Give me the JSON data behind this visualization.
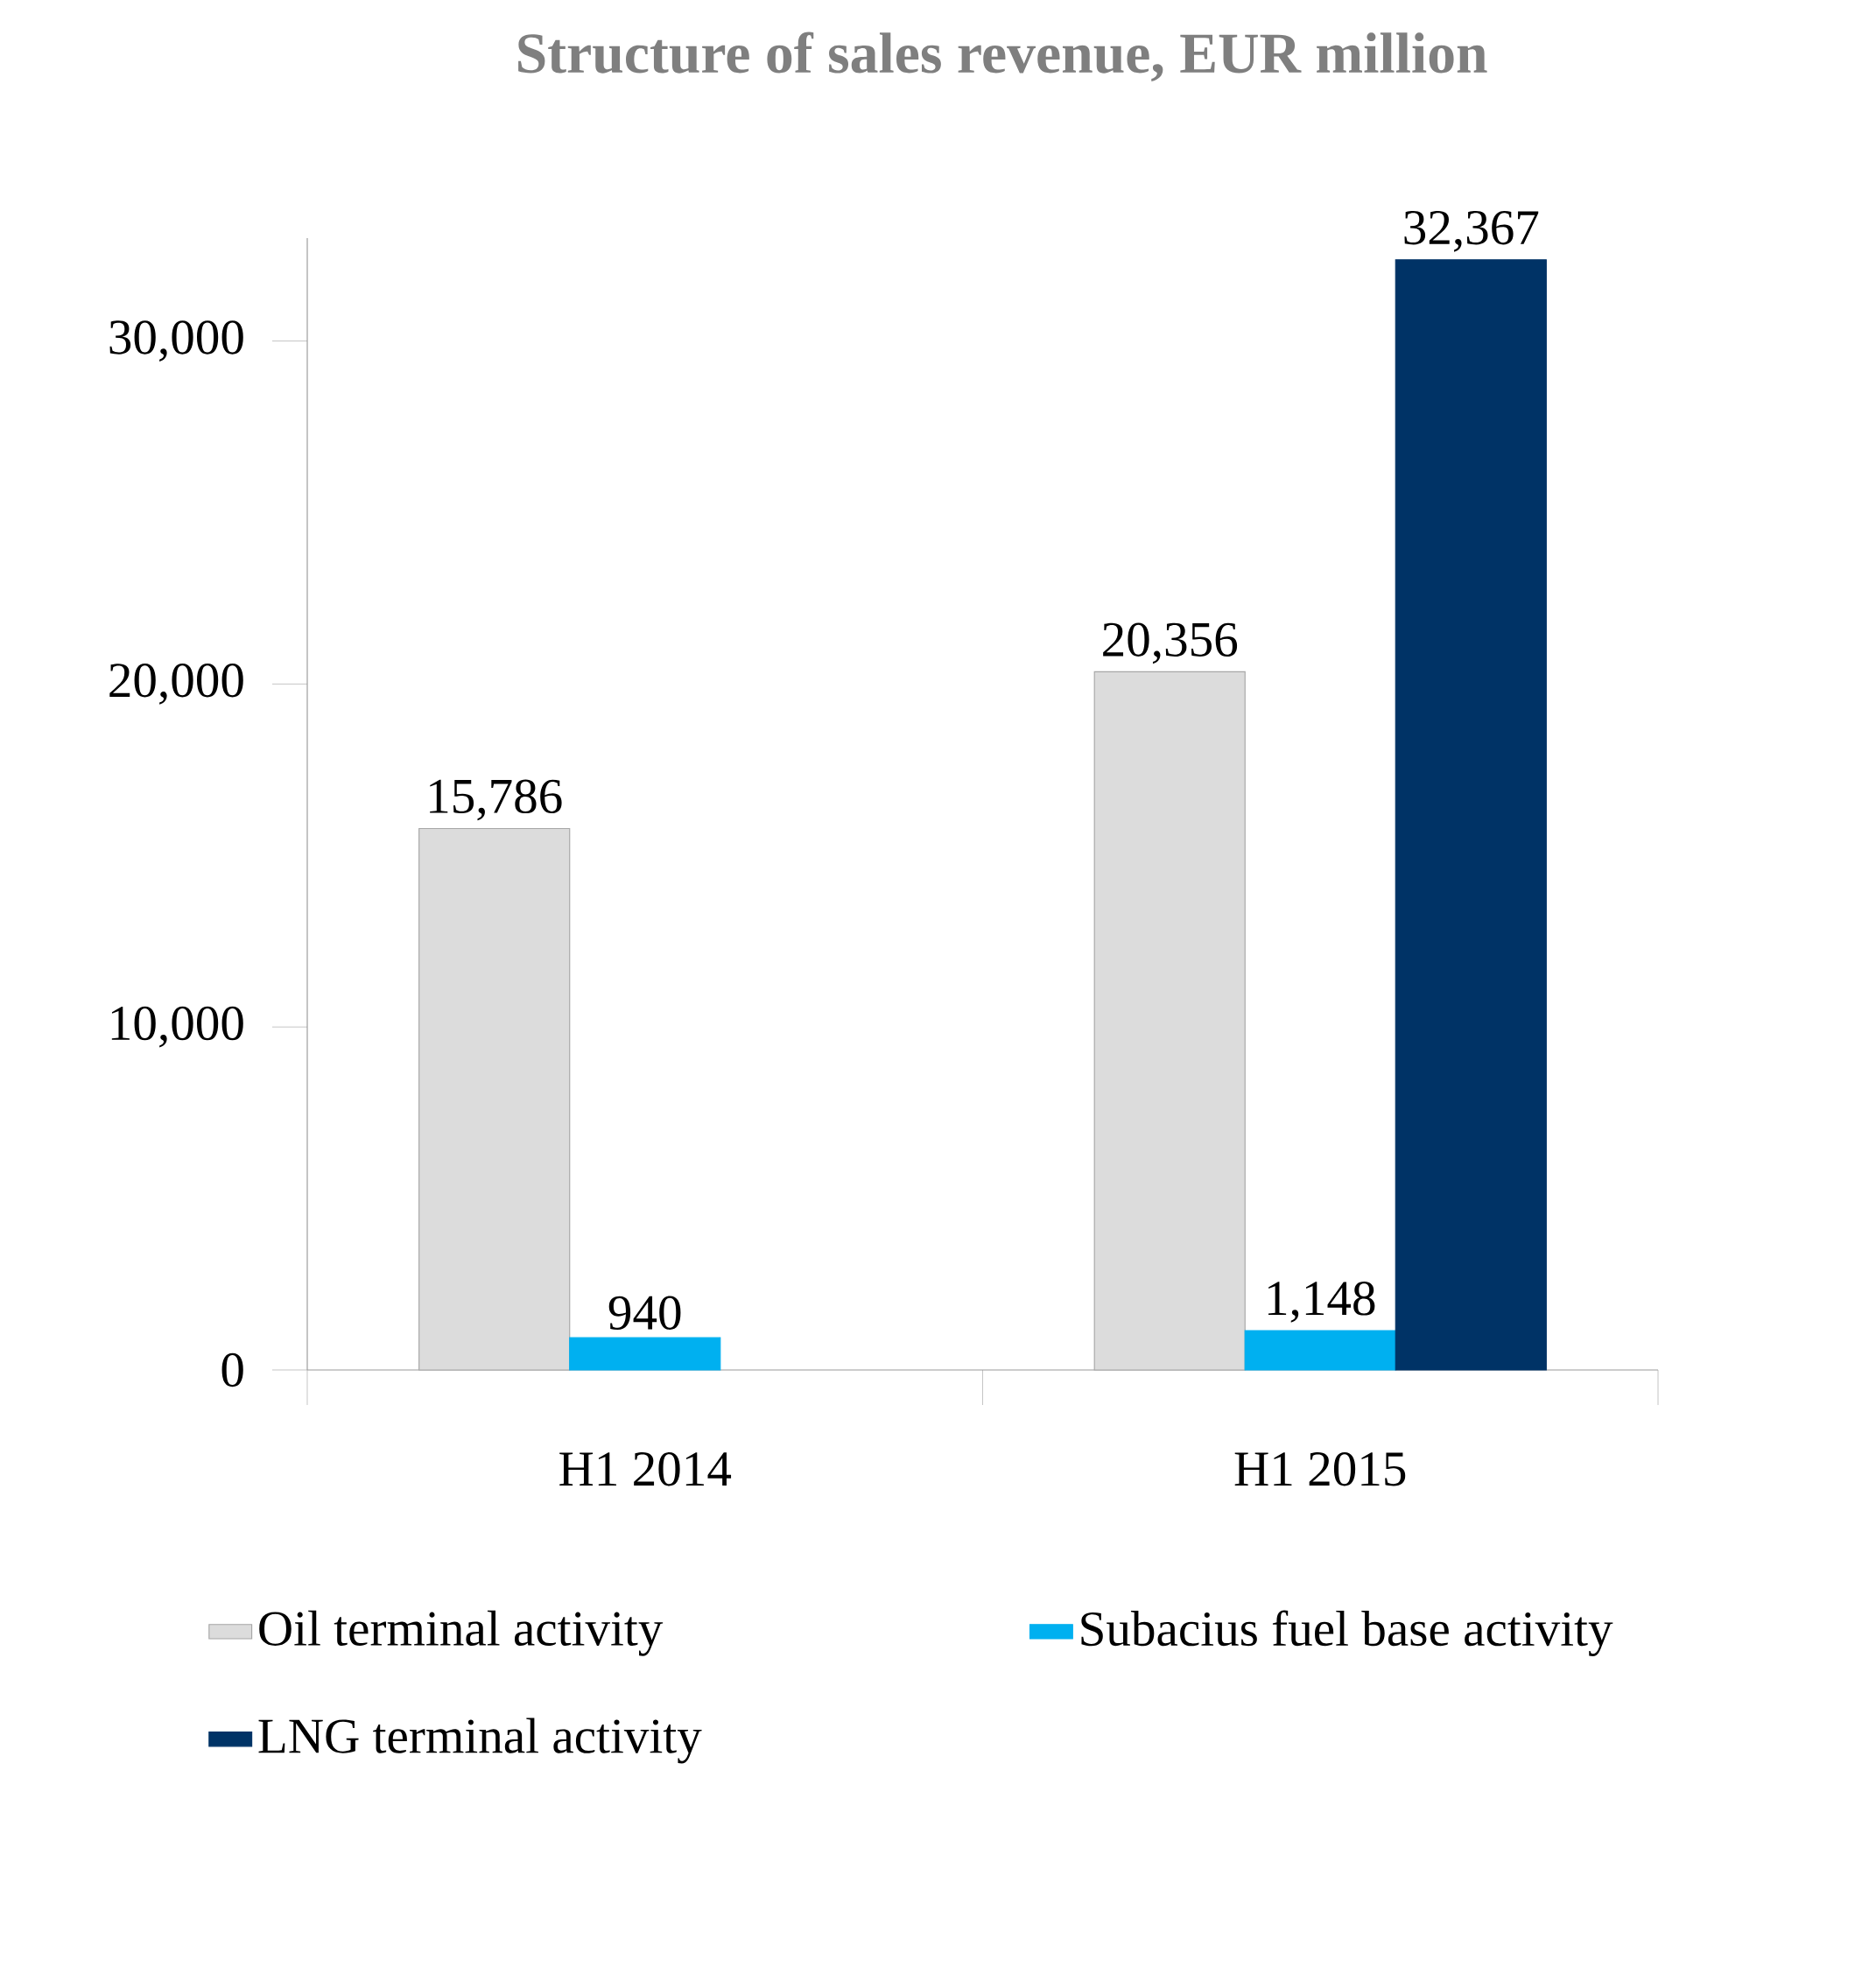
{
  "chart_data": {
    "type": "bar",
    "title": "Structure of sales revenue, EUR million",
    "categories": [
      "H1 2014",
      "H1 2015"
    ],
    "series": [
      {
        "name": "Oil terminal activity",
        "color": "#dcdcdc",
        "values": [
          15786,
          20356
        ],
        "value_labels": [
          "15,786",
          "20,356"
        ]
      },
      {
        "name": "Subacius fuel base activity",
        "color": "#00b0f0",
        "values": [
          940,
          1148
        ],
        "value_labels": [
          "940",
          "1,148"
        ]
      },
      {
        "name": "LNG terminal activity",
        "color": "#003366",
        "values": [
          null,
          32367
        ],
        "value_labels": [
          null,
          "32,367"
        ]
      }
    ],
    "ylim": [
      0,
      33000
    ],
    "yticks": [
      {
        "value": 0,
        "label": "0"
      },
      {
        "value": 10000,
        "label": "10,000"
      },
      {
        "value": 20000,
        "label": "20,000"
      },
      {
        "value": 30000,
        "label": "30,000"
      }
    ],
    "grid": false,
    "legend": "bottom"
  }
}
